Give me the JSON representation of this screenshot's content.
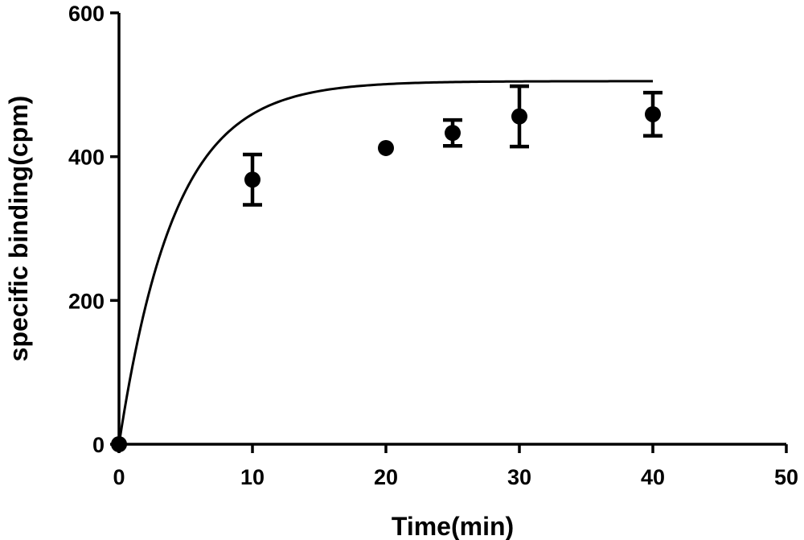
{
  "chart_data": {
    "type": "scatter",
    "xlabel": "Time(min)",
    "ylabel": "specific binding(cpm)",
    "xlim": [
      0,
      50
    ],
    "ylim": [
      0,
      600
    ],
    "x_ticks": [
      "0",
      "10",
      "20",
      "30",
      "40",
      "50"
    ],
    "y_ticks": [
      "0",
      "200",
      "400",
      "600"
    ],
    "grid": false,
    "legend": "none",
    "series": [
      {
        "points": [
          {
            "x": 0,
            "y": 0,
            "err": 0
          },
          {
            "x": 10,
            "y": 368,
            "err": 35
          },
          {
            "x": 20,
            "y": 412,
            "err": 0
          },
          {
            "x": 25,
            "y": 433,
            "err": 18
          },
          {
            "x": 30,
            "y": 456,
            "err": 42
          },
          {
            "x": 40,
            "y": 459,
            "err": 30
          }
        ],
        "fit": {
          "model": "one-phase association",
          "ymax": 505,
          "k": 0.24
        }
      }
    ]
  }
}
